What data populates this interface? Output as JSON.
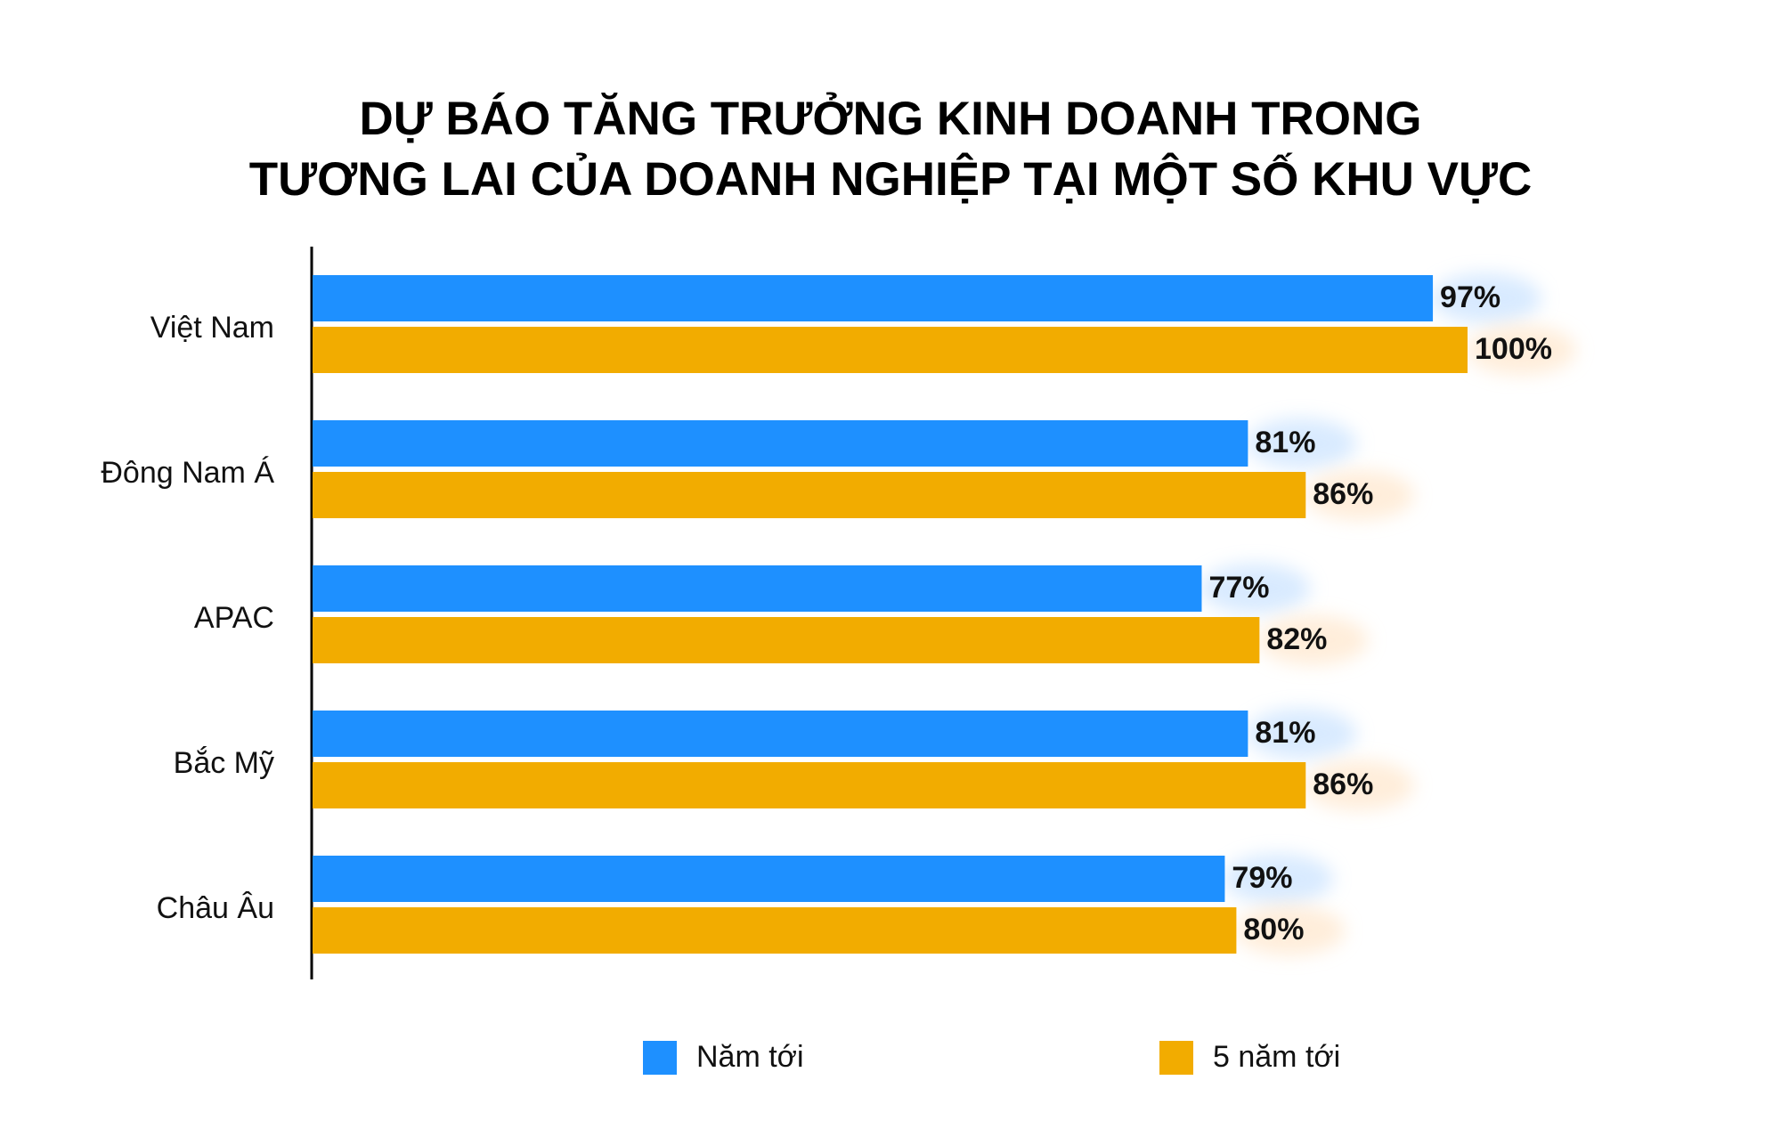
{
  "chart_data": {
    "type": "bar",
    "orientation": "horizontal",
    "title_lines": [
      "DỰ BÁO TĂNG TRƯỞNG KINH DOANH TRONG",
      "TƯƠNG LAI CỦA DOANH NGHIỆP TẠI MỘT SỐ KHU VỰC"
    ],
    "categories": [
      "Việt Nam",
      "Đông Nam Á",
      "APAC",
      "Bắc Mỹ",
      "Châu Âu"
    ],
    "series": [
      {
        "name": "Năm tới",
        "color": "#1E90FF",
        "values": [
          97,
          81,
          77,
          81,
          79
        ],
        "labels": [
          "97%",
          "81%",
          "77%",
          "81%",
          "79%"
        ]
      },
      {
        "name": "5 năm tới",
        "color": "#F2AC00",
        "values": [
          100,
          86,
          82,
          86,
          80
        ],
        "labels": [
          "100%",
          "86%",
          "82%",
          "86%",
          "80%"
        ]
      }
    ],
    "xlim": [
      0,
      100
    ],
    "grid": false,
    "legend_position": "bottom"
  }
}
